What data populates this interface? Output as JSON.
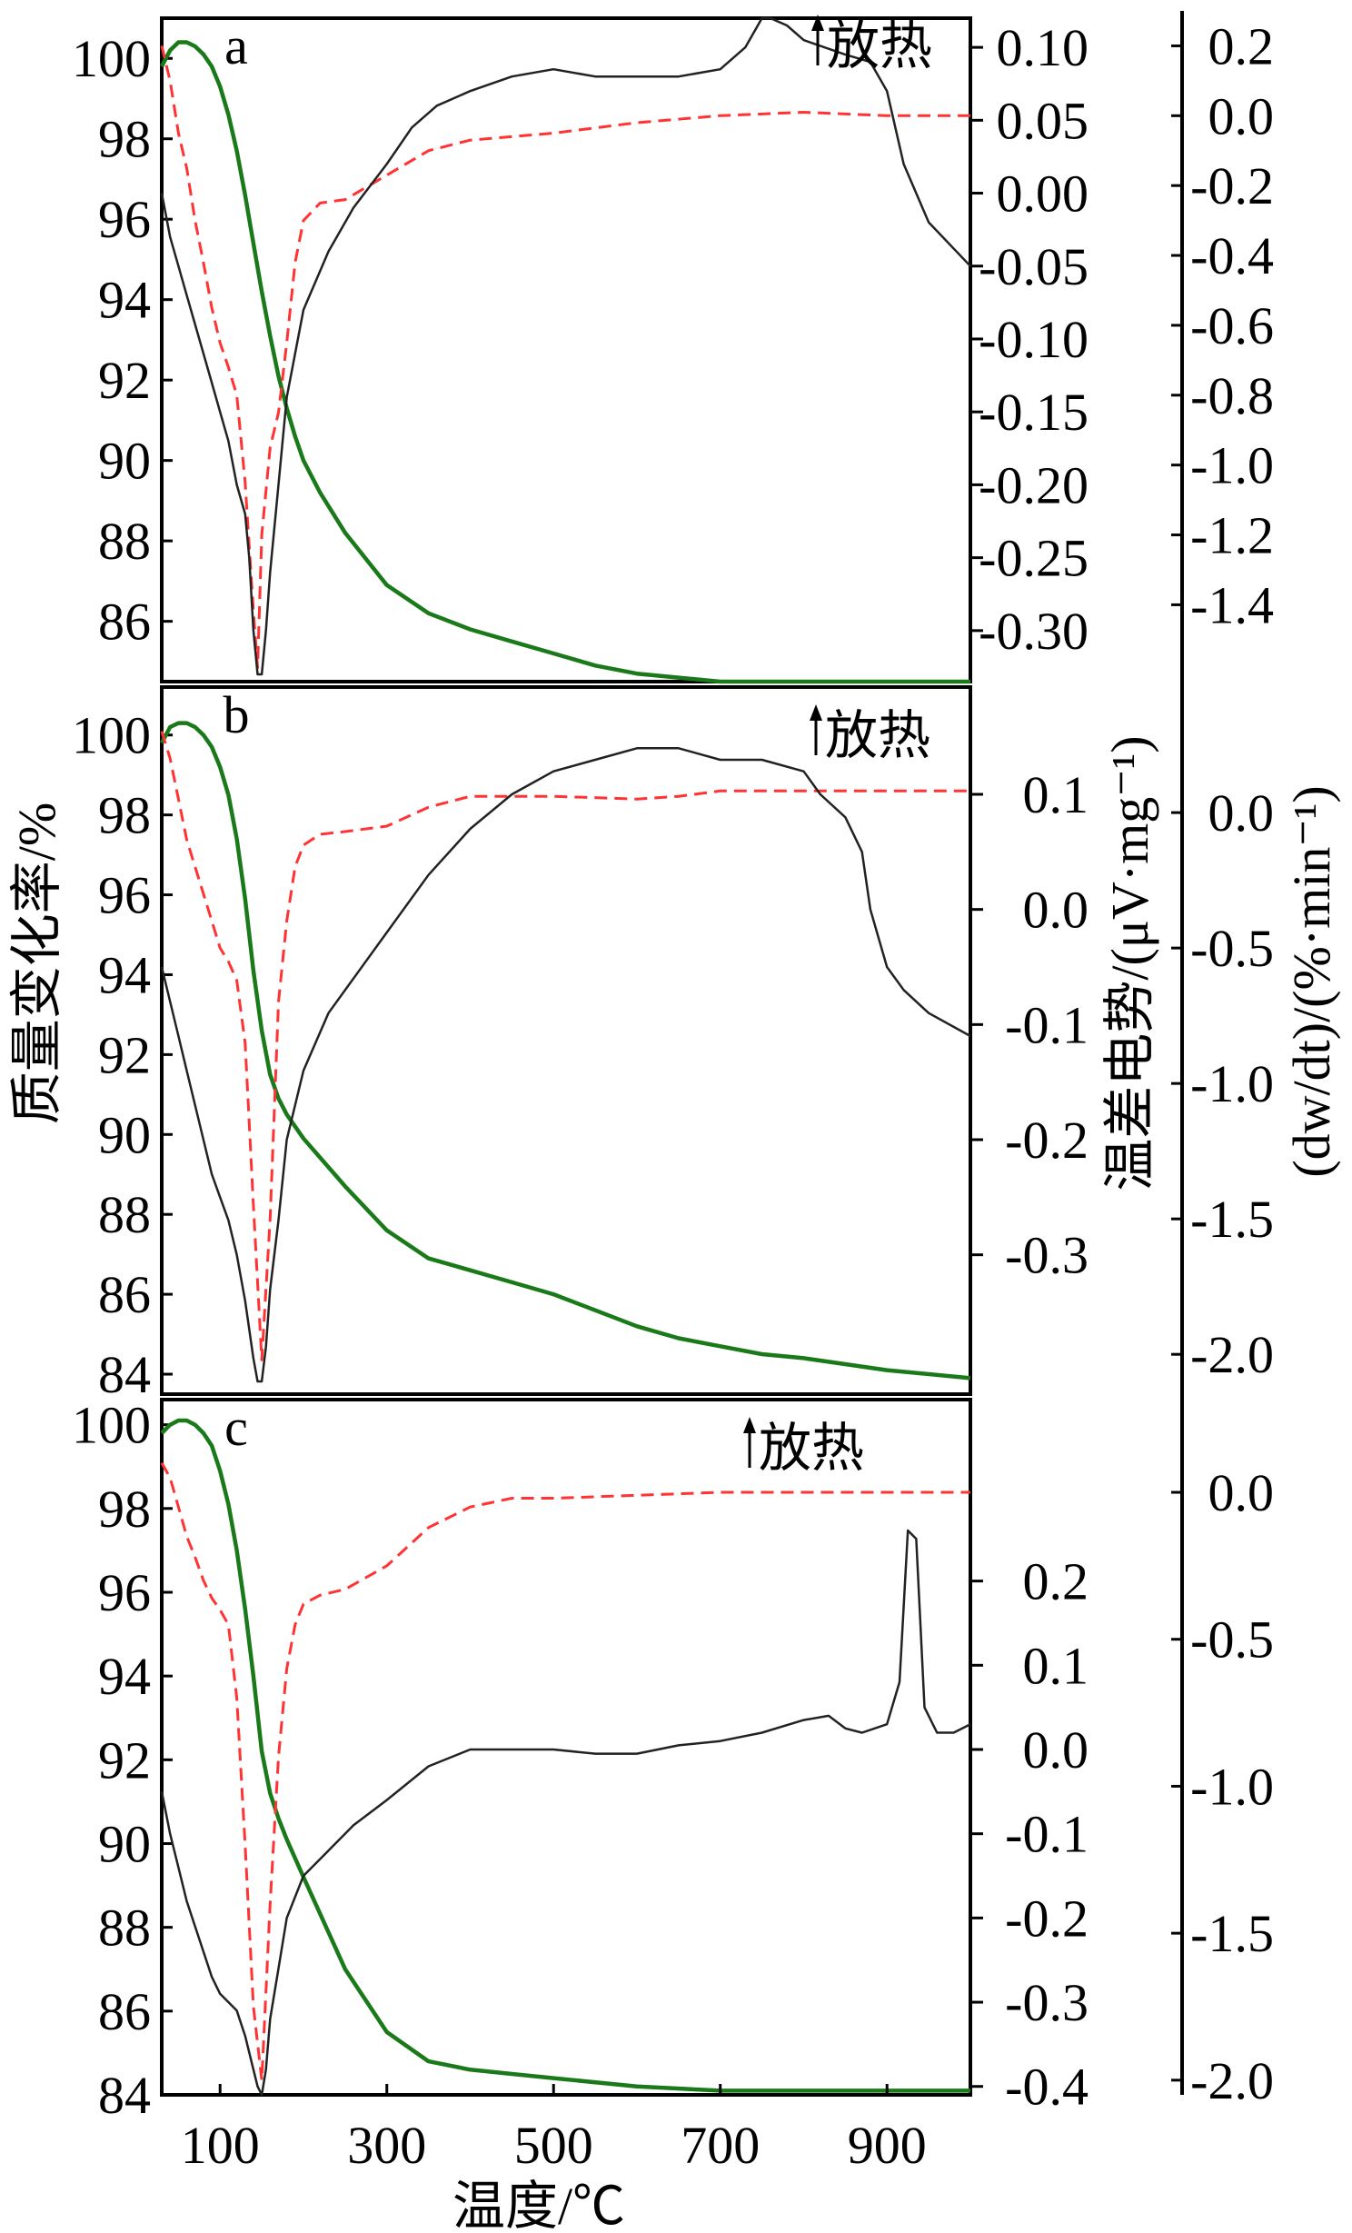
{
  "colors": {
    "tg": "#1a7a1a",
    "dtg": "#ff3333",
    "dta": "#222222",
    "axis": "#000000"
  },
  "axes_text": {
    "xlabel": "温度/℃",
    "ylabel_left": "质量变化率/%",
    "ylabel_mid": "温差电势/(μV·mg⁻¹)",
    "ylabel_right": "(dw/dt)/(%·min⁻¹)",
    "annotation": "放热"
  },
  "x_axis": {
    "range": [
      30,
      1000
    ],
    "ticks": [
      100,
      300,
      500,
      700,
      900
    ]
  },
  "chart_data": [
    {
      "type": "line",
      "panel": "a",
      "xlim": [
        30,
        1000
      ],
      "ylim": [
        84.5,
        101
      ],
      "yticks": [
        86,
        88,
        90,
        92,
        94,
        96,
        98,
        100
      ],
      "mid_axis": {
        "range": [
          -0.335,
          0.125
        ],
        "ticks": [
          "0.10",
          "0.05",
          "0.00",
          "-0.05",
          "-0.10",
          "-0.15",
          "-0.20",
          "-0.25",
          "-0.30"
        ]
      },
      "right_axis": {
        "range": [
          -1.62,
          0.3
        ],
        "ticks": [
          "0.2",
          "0.0",
          "-0.2",
          "-0.4",
          "-0.6",
          "-0.8",
          "-1.0",
          "-1.2",
          "-1.4"
        ]
      },
      "series": [
        {
          "role": "tg",
          "x": [
            30,
            40,
            50,
            60,
            70,
            80,
            90,
            100,
            110,
            120,
            130,
            140,
            150,
            160,
            170,
            180,
            190,
            200,
            220,
            250,
            300,
            350,
            400,
            450,
            500,
            550,
            600,
            650,
            700,
            800,
            900,
            1000
          ],
          "y": [
            99.8,
            100.2,
            100.4,
            100.4,
            100.3,
            100.1,
            99.8,
            99.3,
            98.6,
            97.7,
            96.6,
            95.4,
            94.2,
            93.1,
            92.1,
            91.3,
            90.6,
            90.0,
            89.2,
            88.2,
            86.9,
            86.2,
            85.8,
            85.5,
            85.2,
            84.9,
            84.7,
            84.6,
            84.5,
            84.5,
            84.5,
            84.5
          ]
        },
        {
          "role": "dtg",
          "x": [
            30,
            40,
            50,
            60,
            70,
            80,
            90,
            100,
            110,
            120,
            130,
            140,
            145,
            150,
            160,
            170,
            180,
            190,
            200,
            220,
            250,
            300,
            350,
            400,
            500,
            600,
            700,
            800,
            900,
            1000
          ],
          "y": [
            0.2,
            0.1,
            -0.05,
            -0.15,
            -0.3,
            -0.42,
            -0.55,
            -0.65,
            -0.72,
            -0.8,
            -1.05,
            -1.42,
            -1.58,
            -1.2,
            -0.95,
            -0.85,
            -0.65,
            -0.42,
            -0.3,
            -0.25,
            -0.24,
            -0.17,
            -0.1,
            -0.07,
            -0.05,
            -0.02,
            0.0,
            0.01,
            0.0,
            0.0
          ]
        },
        {
          "role": "dta",
          "x": [
            30,
            40,
            50,
            60,
            70,
            80,
            90,
            100,
            110,
            120,
            130,
            135,
            140,
            145,
            150,
            155,
            160,
            170,
            180,
            200,
            230,
            260,
            300,
            330,
            360,
            400,
            450,
            500,
            550,
            600,
            650,
            700,
            730,
            750,
            760,
            780,
            800,
            850,
            880,
            900,
            920,
            950,
            1000
          ],
          "y": [
            0.0,
            -0.03,
            -0.05,
            -0.07,
            -0.09,
            -0.11,
            -0.13,
            -0.15,
            -0.17,
            -0.2,
            -0.22,
            -0.25,
            -0.3,
            -0.33,
            -0.33,
            -0.3,
            -0.26,
            -0.2,
            -0.14,
            -0.08,
            -0.04,
            -0.01,
            0.02,
            0.045,
            0.06,
            0.07,
            0.08,
            0.085,
            0.08,
            0.08,
            0.08,
            0.085,
            0.1,
            0.12,
            0.12,
            0.115,
            0.105,
            0.095,
            0.09,
            0.07,
            0.02,
            -0.02,
            -0.05
          ]
        }
      ]
    },
    {
      "type": "line",
      "panel": "b",
      "xlim": [
        30,
        1000
      ],
      "ylim": [
        83.5,
        101.2
      ],
      "yticks": [
        84,
        86,
        88,
        90,
        92,
        94,
        96,
        98,
        100
      ],
      "mid_axis": {
        "range": [
          -0.41,
          0.19
        ],
        "ticks": [
          "0.1",
          "0.0",
          "-0.1",
          "-0.2",
          "-0.3"
        ]
      },
      "right_axis": {
        "range": [
          -2.1,
          0.45
        ],
        "ticks": [
          "0.0",
          "-0.5",
          "-1.0",
          "-1.5",
          "-2.0"
        ]
      },
      "series": [
        {
          "role": "tg",
          "x": [
            30,
            40,
            50,
            60,
            70,
            80,
            90,
            100,
            110,
            120,
            130,
            140,
            150,
            160,
            170,
            180,
            200,
            250,
            300,
            350,
            400,
            450,
            500,
            550,
            600,
            650,
            700,
            750,
            800,
            900,
            1000
          ],
          "y": [
            99.8,
            100.2,
            100.3,
            100.3,
            100.2,
            100.0,
            99.7,
            99.2,
            98.5,
            97.4,
            95.9,
            94.1,
            92.6,
            91.5,
            90.9,
            90.5,
            89.9,
            88.7,
            87.6,
            86.9,
            86.6,
            86.3,
            86.0,
            85.6,
            85.2,
            84.9,
            84.7,
            84.5,
            84.4,
            84.1,
            83.9
          ]
        },
        {
          "role": "dtg",
          "x": [
            30,
            40,
            50,
            60,
            70,
            80,
            90,
            100,
            110,
            120,
            130,
            140,
            150,
            160,
            170,
            180,
            190,
            200,
            220,
            250,
            300,
            350,
            400,
            500,
            600,
            650,
            700,
            800,
            900,
            1000
          ],
          "y": [
            0.3,
            0.2,
            0.05,
            -0.1,
            -0.2,
            -0.3,
            -0.4,
            -0.5,
            -0.55,
            -0.62,
            -0.85,
            -1.45,
            -2.02,
            -1.5,
            -0.7,
            -0.4,
            -0.2,
            -0.12,
            -0.08,
            -0.07,
            -0.05,
            0.02,
            0.06,
            0.06,
            0.05,
            0.06,
            0.08,
            0.08,
            0.08,
            0.08
          ]
        },
        {
          "role": "dta",
          "x": [
            30,
            40,
            50,
            60,
            70,
            80,
            90,
            100,
            110,
            120,
            130,
            140,
            145,
            150,
            155,
            160,
            170,
            180,
            200,
            230,
            260,
            300,
            350,
            400,
            450,
            500,
            550,
            600,
            650,
            700,
            750,
            800,
            820,
            850,
            870,
            880,
            900,
            920,
            950,
            1000
          ],
          "y": [
            -0.05,
            -0.08,
            -0.11,
            -0.14,
            -0.17,
            -0.2,
            -0.23,
            -0.25,
            -0.27,
            -0.3,
            -0.34,
            -0.39,
            -0.41,
            -0.41,
            -0.38,
            -0.33,
            -0.27,
            -0.2,
            -0.14,
            -0.09,
            -0.06,
            -0.02,
            0.03,
            0.07,
            0.1,
            0.12,
            0.13,
            0.14,
            0.14,
            0.13,
            0.13,
            0.12,
            0.1,
            0.08,
            0.05,
            0.0,
            -0.05,
            -0.07,
            -0.09,
            -0.11
          ]
        }
      ]
    },
    {
      "type": "line",
      "panel": "c",
      "xlim": [
        30,
        1000
      ],
      "ylim": [
        84,
        100.6
      ],
      "yticks": [
        84,
        86,
        88,
        90,
        92,
        94,
        96,
        98,
        100
      ],
      "mid_axis": {
        "range": [
          -0.41,
          0.41
        ],
        "ticks": [
          "0.2",
          "0.1",
          "0.0",
          "-0.1",
          "-0.2",
          "-0.3",
          "-0.4"
        ]
      },
      "right_axis": {
        "range": [
          -2.05,
          0.3
        ],
        "ticks": [
          "0.0",
          "-0.5",
          "-1.0",
          "-1.5",
          "-2.0"
        ]
      },
      "series": [
        {
          "role": "tg",
          "x": [
            30,
            40,
            50,
            60,
            70,
            80,
            90,
            100,
            110,
            120,
            130,
            140,
            150,
            160,
            170,
            180,
            200,
            250,
            300,
            350,
            400,
            450,
            500,
            600,
            700,
            800,
            900,
            1000
          ],
          "y": [
            99.8,
            100.0,
            100.1,
            100.1,
            100.0,
            99.8,
            99.5,
            98.9,
            98.1,
            97.0,
            95.6,
            94.0,
            92.2,
            91.2,
            90.6,
            90.1,
            89.2,
            87.0,
            85.5,
            84.8,
            84.6,
            84.5,
            84.4,
            84.2,
            84.1,
            84.1,
            84.1,
            84.1
          ]
        },
        {
          "role": "dtg",
          "x": [
            30,
            40,
            50,
            60,
            70,
            80,
            90,
            100,
            110,
            120,
            130,
            140,
            150,
            160,
            170,
            180,
            190,
            200,
            220,
            250,
            300,
            350,
            400,
            450,
            500,
            600,
            700,
            800,
            900,
            1000
          ],
          "y": [
            0.1,
            0.05,
            -0.05,
            -0.15,
            -0.22,
            -0.3,
            -0.36,
            -0.4,
            -0.45,
            -0.7,
            -1.2,
            -1.75,
            -2.0,
            -1.4,
            -0.9,
            -0.6,
            -0.45,
            -0.38,
            -0.35,
            -0.33,
            -0.25,
            -0.12,
            -0.05,
            -0.02,
            -0.02,
            -0.01,
            0.0,
            0.0,
            0.0,
            0.0
          ]
        },
        {
          "role": "dta",
          "x": [
            30,
            40,
            50,
            60,
            70,
            80,
            90,
            100,
            110,
            120,
            130,
            140,
            145,
            150,
            155,
            160,
            170,
            180,
            200,
            230,
            260,
            300,
            350,
            400,
            450,
            500,
            550,
            600,
            650,
            700,
            750,
            800,
            830,
            850,
            870,
            900,
            915,
            925,
            935,
            945,
            960,
            980,
            1000
          ],
          "y": [
            -0.05,
            -0.1,
            -0.14,
            -0.18,
            -0.21,
            -0.24,
            -0.27,
            -0.29,
            -0.3,
            -0.31,
            -0.34,
            -0.38,
            -0.4,
            -0.41,
            -0.38,
            -0.32,
            -0.26,
            -0.2,
            -0.15,
            -0.12,
            -0.09,
            -0.06,
            -0.02,
            0.0,
            0.0,
            0.0,
            -0.005,
            -0.005,
            0.005,
            0.01,
            0.02,
            0.035,
            0.04,
            0.025,
            0.02,
            0.03,
            0.08,
            0.26,
            0.25,
            0.05,
            0.02,
            0.02,
            0.03
          ]
        }
      ]
    }
  ]
}
